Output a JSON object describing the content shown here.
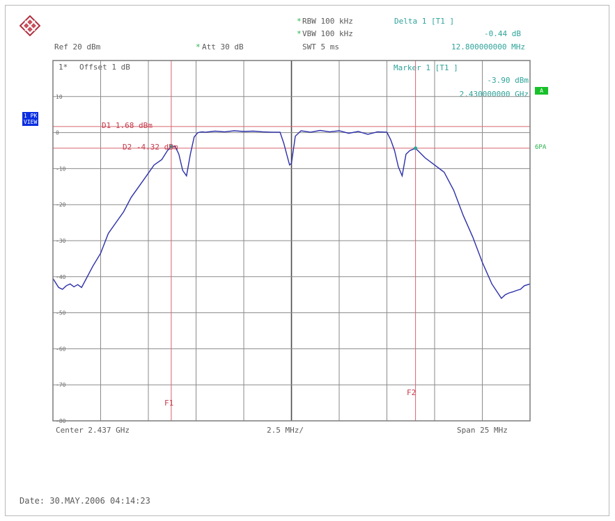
{
  "header": {
    "rbw": "RBW 100 kHz",
    "vbw": "VBW 100 kHz",
    "swt": "SWT 5 ms",
    "ref": "Ref  20 dBm",
    "att": "Att  30 dB",
    "offset": "Offset  1 dB",
    "trace_prefix": "1*",
    "rbw_star": "*",
    "vbw_star": "*",
    "att_star": "*"
  },
  "delta_marker": {
    "label": "Delta 1 [T1 ]",
    "level": "-0.44 dB",
    "freq": "12.800000000 MHz"
  },
  "marker": {
    "label": "Marker 1 [T1 ]",
    "level": "-3.90 dBm",
    "freq": "2.430000000 GHz"
  },
  "badges": {
    "view_1": "1 PK",
    "view_2": "VIEW",
    "a": "A",
    "side": "6PA"
  },
  "lines": {
    "d1": "D1  1.68 dBm",
    "d2": "D2  -4.32 dBm",
    "f1": "F1",
    "f2": "F2"
  },
  "footer": {
    "center": "Center 2.437 GHz",
    "div": "2.5 MHz/",
    "span": "Span 25 MHz",
    "date": "Date: 30.MAY.2006  04:14:23"
  },
  "colors": {
    "trace": "#2b2fa8",
    "grid": "#8a8a8a",
    "lines": "#d7656f",
    "markerText": "#2fa39a",
    "green": "#27b048"
  },
  "chart_data": {
    "type": "line",
    "title": "",
    "xlabel": "",
    "ylabel": "",
    "unit": "dBm",
    "x_unit": "MHz offset from center",
    "xlim": [
      -12.5,
      12.5
    ],
    "ylim": [
      -80,
      20
    ],
    "yticks": [
      10,
      0,
      -10,
      -20,
      -30,
      -40,
      -50,
      -60,
      -70,
      -80
    ],
    "ytick_labels": [
      "10",
      "0",
      "-10",
      "-20",
      "-30",
      "-40",
      "-50",
      "-60",
      "-70",
      "-80"
    ],
    "hlines": [
      {
        "name": "D1",
        "value": 1.68
      },
      {
        "name": "D2",
        "value": -4.32
      }
    ],
    "vlines": [
      {
        "name": "F1",
        "value": -6.3
      },
      {
        "name": "F2",
        "value": 6.5
      }
    ],
    "markers": [
      {
        "name": "M1",
        "x": -6.3,
        "y": -3.9
      },
      {
        "name": "D1",
        "x": 6.5,
        "y": -4.34
      }
    ],
    "series": [
      {
        "x": [
          -12.5,
          -12.2,
          -12.0,
          -11.8,
          -11.6,
          -11.4,
          -11.2,
          -11.0,
          -10.8,
          -10.4,
          -10.0,
          -9.6,
          -9.2,
          -8.8,
          -8.4,
          -8.0,
          -7.6,
          -7.2,
          -6.8,
          -6.5,
          -6.3,
          -6.1,
          -5.9,
          -5.7,
          -5.5,
          -5.3,
          -5.1,
          -4.9,
          -4.7,
          -4.5,
          -4.0,
          -3.5,
          -3.0,
          -2.5,
          -2.0,
          -1.5,
          -1.0,
          -0.6,
          -0.4,
          -0.2,
          -0.1,
          0.0,
          0.2,
          0.5,
          1.0,
          1.5,
          2.0,
          2.5,
          3.0,
          3.5,
          4.0,
          4.5,
          5.0,
          5.2,
          5.4,
          5.6,
          5.8,
          6.0,
          6.2,
          6.5,
          7.0,
          7.5,
          8.0,
          8.5,
          9.0,
          9.5,
          10.0,
          10.5,
          11.0,
          11.2,
          11.4,
          11.6,
          11.8,
          12.0,
          12.2,
          12.5
        ],
        "y": [
          -40.5,
          -43,
          -43.5,
          -42.5,
          -42,
          -42.8,
          -42.2,
          -43,
          -41,
          -37,
          -33.5,
          -28,
          -25,
          -22,
          -18,
          -15,
          -12,
          -9,
          -7.5,
          -5,
          -3.9,
          -3.8,
          -6,
          -10.5,
          -12,
          -6,
          -1.2,
          0,
          0.2,
          0.1,
          0.4,
          0.2,
          0.5,
          0.3,
          0.4,
          0.2,
          0.1,
          0.1,
          -3,
          -7,
          -9,
          -8.5,
          -1,
          0.5,
          0.1,
          0.6,
          0.2,
          0.5,
          -0.2,
          0.3,
          -0.5,
          0.2,
          0.1,
          -2,
          -5,
          -9.5,
          -12,
          -6,
          -5,
          -4.34,
          -7,
          -9,
          -11,
          -16,
          -23,
          -29,
          -36,
          -42,
          -46,
          -45,
          -44.5,
          -44.2,
          -43.8,
          -43.5,
          -42.5,
          -42
        ]
      }
    ]
  }
}
